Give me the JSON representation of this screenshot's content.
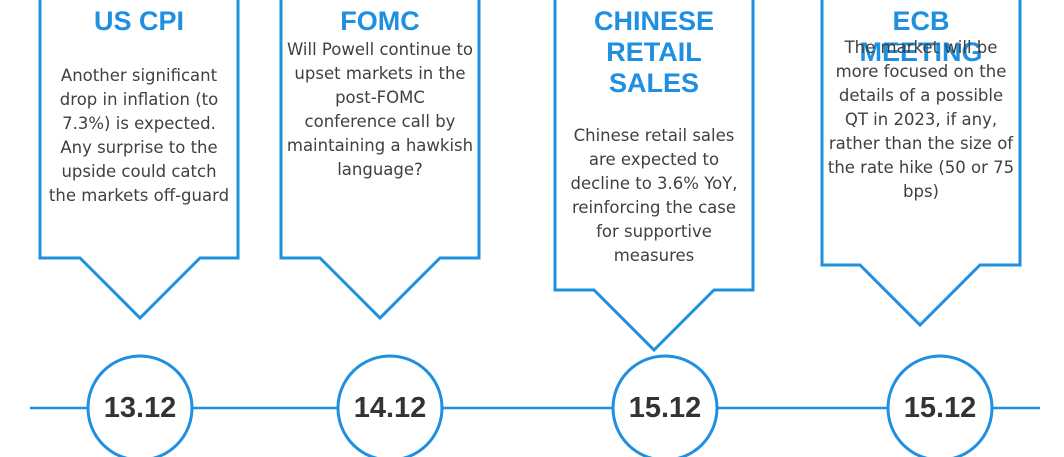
{
  "events": [
    {
      "title": "US CPI",
      "date": "13.12",
      "body": [
        "Another significant",
        "drop in inflation (to",
        "7.3%) is expected.",
        "Any surprise to the",
        "upside could catch",
        "the markets off-guard"
      ]
    },
    {
      "title": "FOMC",
      "date": "14.12",
      "body": [
        "Will Powell continue to",
        "upset markets in the",
        "post-FOMC",
        "conference call by",
        "maintaining a hawkish",
        "language?"
      ]
    },
    {
      "title": "CHINESE RETAIL SALES",
      "date": "15.12",
      "body": [
        "Chinese retail sales",
        "are expected to",
        "decline to 3.6% YoY,",
        "reinforcing the case",
        "for supportive",
        "measures"
      ]
    },
    {
      "title": "ECB MEETING",
      "date": "15.12",
      "body": [
        "The market will be",
        "more focused on the",
        "details of a possible",
        "QT in 2023, if any,",
        "rather than the size of",
        "the rate hike (50 or 75",
        "bps)"
      ]
    }
  ]
}
